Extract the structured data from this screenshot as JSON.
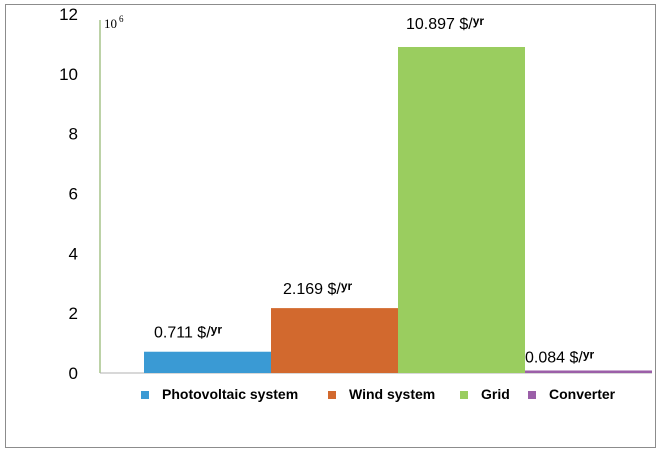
{
  "chart_data": {
    "type": "bar",
    "title": "",
    "xlabel": "",
    "ylabel": "",
    "y_unit_multiplier": {
      "base": "10",
      "exponent": "6"
    },
    "ylim": [
      0,
      12
    ],
    "yticks": [
      "0",
      "2",
      "4",
      "6",
      "8",
      "10",
      "12"
    ],
    "grid": false,
    "legend_position": "bottom",
    "series": [
      {
        "name": "Photovoltaic system",
        "value": 0.711,
        "color": "#3a9ad4",
        "label_number": "0.711",
        "label_unit": "$/",
        "label_sub": "yr"
      },
      {
        "name": "Wind system",
        "value": 2.169,
        "color": "#d2692e",
        "label_number": "2.169",
        "label_unit": "$/",
        "label_sub": "yr"
      },
      {
        "name": "Grid",
        "value": 10.897,
        "color": "#9acd5f",
        "label_number": "10.897",
        "label_unit": "$/",
        "label_sub": "yr"
      },
      {
        "name": "Converter",
        "value": 0.084,
        "color": "#9b5fa8",
        "label_number": "0.084",
        "label_unit": "$/",
        "label_sub": "yr"
      }
    ]
  }
}
